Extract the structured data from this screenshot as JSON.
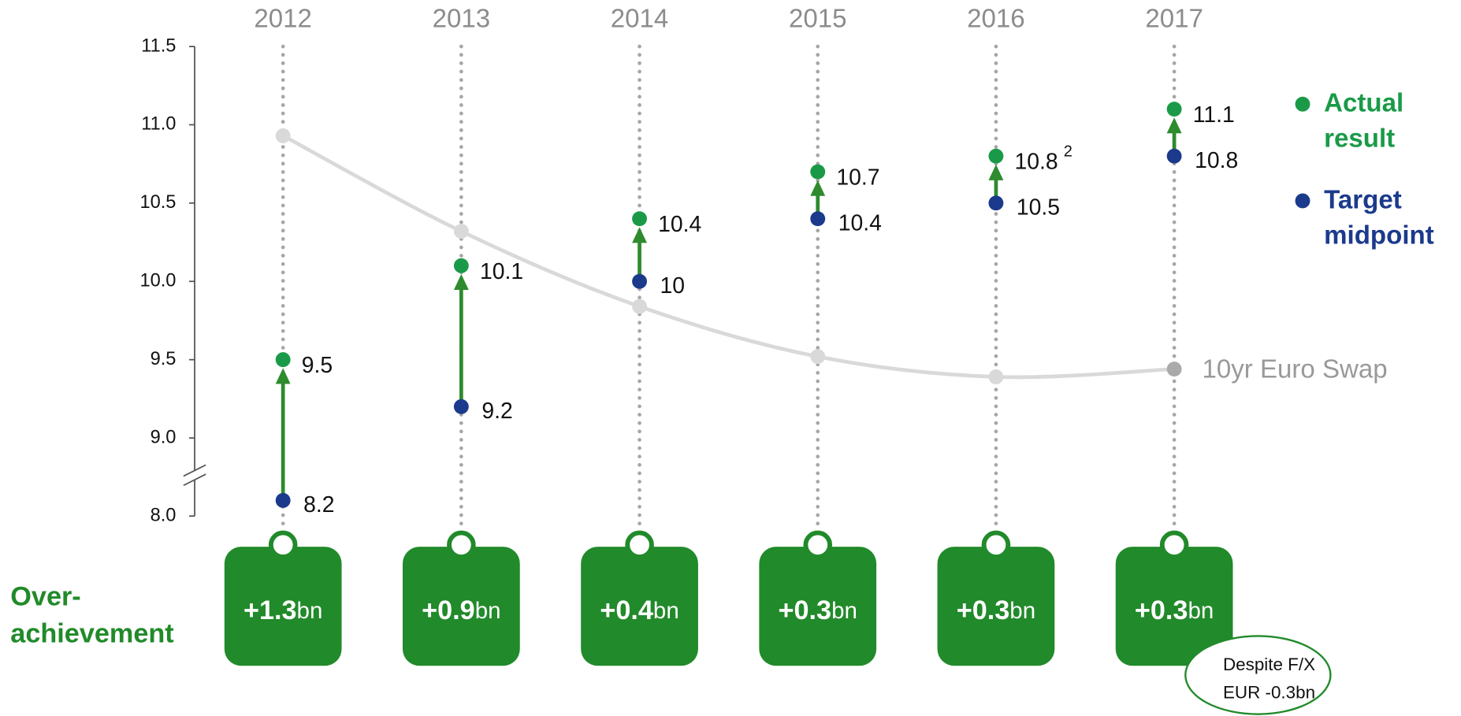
{
  "chart_data": {
    "type": "dumbbell",
    "categories": [
      "2012",
      "2013",
      "2014",
      "2015",
      "2016",
      "2017"
    ],
    "ylim": [
      8.0,
      11.5
    ],
    "axis_break": [
      8.0,
      9.0
    ],
    "yticks": [
      {
        "value": 8.0,
        "label": "8.0"
      },
      {
        "value": 9.0,
        "label": "9.0"
      },
      9.5,
      {
        "value": 10.0,
        "label": "10.0"
      },
      10.5,
      {
        "value": 11.0,
        "label": "11.0"
      },
      11.5
    ],
    "series": [
      {
        "name": "Actual result",
        "color": "#1a9a48",
        "values": [
          9.5,
          10.1,
          10.4,
          10.7,
          10.8,
          11.1
        ],
        "superscripts": [
          null,
          null,
          null,
          null,
          "2",
          null
        ]
      },
      {
        "name": "Target midpoint",
        "color": "#1b3a8c",
        "values": [
          8.2,
          9.2,
          10.0,
          10.4,
          10.5,
          10.8
        ]
      },
      {
        "name": "10yr Euro Swap",
        "color": "#d9d9d9",
        "marker_color_last": "#aaaaaa",
        "values": [
          10.93,
          10.32,
          9.84,
          9.52,
          9.39,
          9.44
        ]
      }
    ],
    "arrow_color": "#2e8b2e",
    "over_achievement": {
      "label": "Over-achievement",
      "color": "#218a2a",
      "values": [
        1.3,
        0.9,
        0.4,
        0.3,
        0.3,
        0.3
      ],
      "value_labels": [
        "+1.3",
        "+0.9",
        "+0.4",
        "+0.3",
        "+0.3",
        "+0.3"
      ],
      "unit": "bn"
    },
    "note": [
      "Despite F/X",
      "EUR -0.3bn"
    ]
  }
}
